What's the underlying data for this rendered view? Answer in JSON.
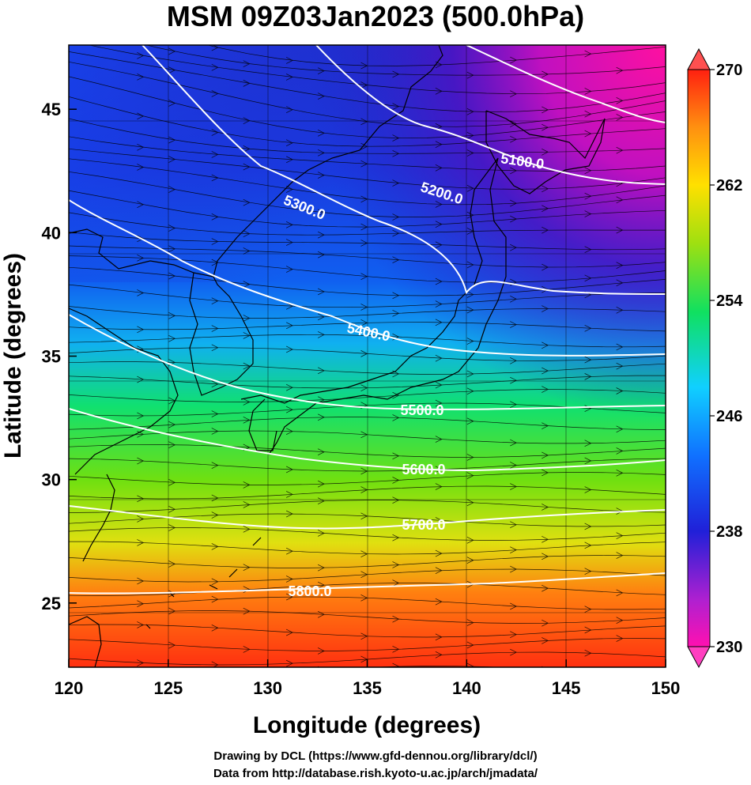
{
  "title": "MSM 09Z03Jan2023 (500.0hPa)",
  "xlabel": "Longitude (degrees)",
  "ylabel": "Latitude  (degrees)",
  "credits": [
    "Drawing by DCL (https://www.gfd-dennou.org/library/dcl/)",
    "Data from http://database.rish.kyoto-u.ac.jp/arch/jmadata/"
  ],
  "chart_data": {
    "type": "heatmap",
    "x_range": [
      120,
      150
    ],
    "y_range": [
      22.4,
      47.6
    ],
    "x_ticks": [
      "120",
      "125",
      "130",
      "135",
      "140",
      "145",
      "150"
    ],
    "y_ticks": [
      "25",
      "30",
      "35",
      "40",
      "45"
    ],
    "colorbar": {
      "min": 230,
      "max": 270,
      "tick_labels": [
        "270",
        "262",
        "254",
        "246",
        "238",
        "230"
      ],
      "colors": [
        "#ff0aa0",
        "#a020d0",
        "#2020e0",
        "#1060ff",
        "#10c0ff",
        "#10e070",
        "#a0e010",
        "#ffe000",
        "#ff9010",
        "#ff3010"
      ]
    },
    "contours": [
      {
        "label": "5100.0",
        "value": 5100
      },
      {
        "label": "5200.0",
        "value": 5200
      },
      {
        "label": "5300.0",
        "value": 5300
      },
      {
        "label": "5400.0",
        "value": 5400
      },
      {
        "label": "5500.0",
        "value": 5500
      },
      {
        "label": "5600.0",
        "value": 5600
      },
      {
        "label": "5700.0",
        "value": 5700
      },
      {
        "label": "5800.0",
        "value": 5800
      }
    ]
  }
}
